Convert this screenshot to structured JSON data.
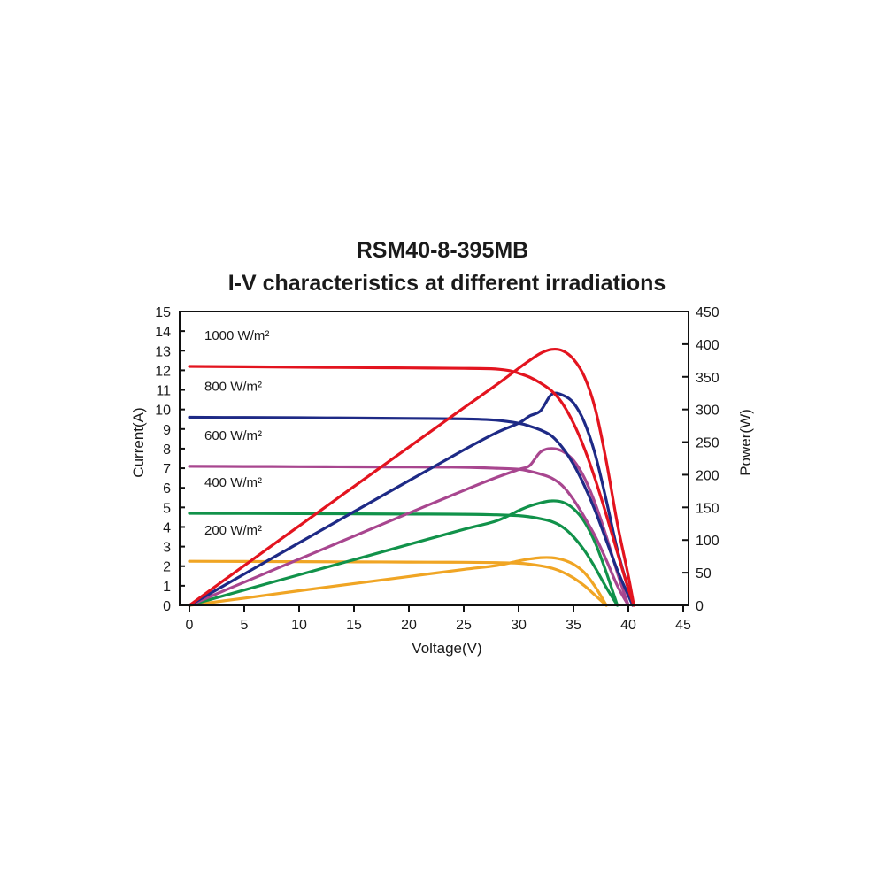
{
  "chart_data": {
    "type": "line",
    "title": "RSM40-8-395MB",
    "subtitle": "I-V characteristics at different irradiations",
    "xlabel": "Voltage(V)",
    "ylabel": "Current(A)",
    "y2label": "Power(W)",
    "xlim": [
      0,
      45
    ],
    "ylim": [
      0,
      15
    ],
    "y2lim": [
      0,
      450
    ],
    "xticks": [
      "0",
      "5",
      "10",
      "15",
      "20",
      "25",
      "30",
      "35",
      "40",
      "45"
    ],
    "yticks": [
      "0",
      "1",
      "2",
      "3",
      "4",
      "5",
      "6",
      "7",
      "8",
      "9",
      "10",
      "11",
      "12",
      "13",
      "14",
      "15"
    ],
    "y2ticks": [
      "0",
      "50",
      "100",
      "150",
      "200",
      "250",
      "300",
      "350",
      "400",
      "450"
    ],
    "grid": false,
    "series": [
      {
        "name": "1000 W/m²",
        "color": "#e3141f",
        "iv": [
          [
            0,
            12.2
          ],
          [
            5,
            12.18
          ],
          [
            10,
            12.16
          ],
          [
            15,
            12.14
          ],
          [
            20,
            12.12
          ],
          [
            25,
            12.1
          ],
          [
            27.5,
            12.08
          ],
          [
            29,
            12.0
          ],
          [
            30,
            11.85
          ],
          [
            31,
            11.65
          ],
          [
            32,
            11.35
          ],
          [
            33,
            10.95
          ],
          [
            34,
            10.3
          ],
          [
            35,
            9.3
          ],
          [
            36,
            8.0
          ],
          [
            37,
            6.4
          ],
          [
            38,
            4.6
          ],
          [
            39,
            2.7
          ],
          [
            39.8,
            1.2
          ],
          [
            40.5,
            0
          ]
        ],
        "pv": [
          [
            0,
            0
          ],
          [
            5,
            60.9
          ],
          [
            10,
            121.6
          ],
          [
            15,
            182.1
          ],
          [
            20,
            242.4
          ],
          [
            25,
            302.5
          ],
          [
            28,
            338
          ],
          [
            30,
            363
          ],
          [
            31,
            375
          ],
          [
            32,
            386
          ],
          [
            33,
            392
          ],
          [
            34,
            390
          ],
          [
            35,
            377
          ],
          [
            36,
            350
          ],
          [
            37,
            300
          ],
          [
            38,
            220
          ],
          [
            39,
            125
          ],
          [
            40,
            45
          ],
          [
            40.5,
            0
          ]
        ]
      },
      {
        "name": "800 W/m²",
        "color": "#1e2a86",
        "iv": [
          [
            0,
            9.6
          ],
          [
            5,
            9.59
          ],
          [
            10,
            9.58
          ],
          [
            15,
            9.56
          ],
          [
            20,
            9.54
          ],
          [
            25,
            9.52
          ],
          [
            28,
            9.45
          ],
          [
            30,
            9.3
          ],
          [
            31,
            9.15
          ],
          [
            32,
            8.95
          ],
          [
            33,
            8.65
          ],
          [
            34,
            8.05
          ],
          [
            35,
            7.2
          ],
          [
            36,
            6.1
          ],
          [
            37,
            4.8
          ],
          [
            38,
            3.3
          ],
          [
            39,
            1.8
          ],
          [
            40,
            0.5
          ],
          [
            40.4,
            0
          ]
        ],
        "pv": [
          [
            0,
            0
          ],
          [
            5,
            48
          ],
          [
            10,
            95.8
          ],
          [
            15,
            143.4
          ],
          [
            20,
            190.8
          ],
          [
            25,
            238
          ],
          [
            28,
            264.6
          ],
          [
            30,
            279
          ],
          [
            31,
            290
          ],
          [
            32,
            298
          ],
          [
            33,
            323
          ],
          [
            34,
            322
          ],
          [
            35,
            310
          ],
          [
            36,
            280
          ],
          [
            37,
            230
          ],
          [
            38,
            160
          ],
          [
            39,
            85
          ],
          [
            40,
            25
          ],
          [
            40.4,
            0
          ]
        ]
      },
      {
        "name": "600 W/m²",
        "color": "#a8468f",
        "iv": [
          [
            0,
            7.1
          ],
          [
            5,
            7.09
          ],
          [
            10,
            7.08
          ],
          [
            15,
            7.07
          ],
          [
            20,
            7.06
          ],
          [
            25,
            7.05
          ],
          [
            28,
            7.0
          ],
          [
            30,
            6.95
          ],
          [
            31,
            6.85
          ],
          [
            32,
            6.7
          ],
          [
            33,
            6.5
          ],
          [
            34,
            6.1
          ],
          [
            35,
            5.4
          ],
          [
            36,
            4.5
          ],
          [
            37,
            3.5
          ],
          [
            38,
            2.3
          ],
          [
            39,
            1.0
          ],
          [
            40,
            0
          ]
        ],
        "pv": [
          [
            0,
            0
          ],
          [
            5,
            35.5
          ],
          [
            10,
            70.8
          ],
          [
            15,
            106
          ],
          [
            20,
            141.2
          ],
          [
            25,
            176
          ],
          [
            28,
            196
          ],
          [
            30,
            208
          ],
          [
            31,
            214
          ],
          [
            32,
            235
          ],
          [
            33,
            240
          ],
          [
            34,
            236
          ],
          [
            35,
            222
          ],
          [
            36,
            195
          ],
          [
            37,
            155
          ],
          [
            38,
            105
          ],
          [
            39,
            50
          ],
          [
            40,
            0
          ]
        ]
      },
      {
        "name": "400 W/m²",
        "color": "#11924a",
        "iv": [
          [
            0,
            4.7
          ],
          [
            5,
            4.69
          ],
          [
            10,
            4.68
          ],
          [
            15,
            4.67
          ],
          [
            20,
            4.66
          ],
          [
            25,
            4.65
          ],
          [
            28,
            4.62
          ],
          [
            30,
            4.58
          ],
          [
            31,
            4.52
          ],
          [
            32,
            4.42
          ],
          [
            33,
            4.28
          ],
          [
            34,
            4.0
          ],
          [
            35,
            3.5
          ],
          [
            36,
            2.8
          ],
          [
            37,
            1.9
          ],
          [
            38,
            0.9
          ],
          [
            39,
            0
          ]
        ],
        "pv": [
          [
            0,
            0
          ],
          [
            5,
            23.5
          ],
          [
            10,
            46.8
          ],
          [
            15,
            70
          ],
          [
            20,
            93.2
          ],
          [
            25,
            116.3
          ],
          [
            28,
            129.4
          ],
          [
            30,
            145
          ],
          [
            31,
            152
          ],
          [
            32,
            157
          ],
          [
            33,
            160
          ],
          [
            34,
            158
          ],
          [
            35,
            148
          ],
          [
            36,
            128
          ],
          [
            37,
            95
          ],
          [
            38,
            50
          ],
          [
            39,
            0
          ]
        ]
      },
      {
        "name": "200 W/m²",
        "color": "#f0a524",
        "iv": [
          [
            0,
            2.25
          ],
          [
            5,
            2.24
          ],
          [
            10,
            2.23
          ],
          [
            15,
            2.22
          ],
          [
            20,
            2.21
          ],
          [
            25,
            2.2
          ],
          [
            28,
            2.18
          ],
          [
            30,
            2.15
          ],
          [
            31,
            2.1
          ],
          [
            32,
            2.02
          ],
          [
            33,
            1.9
          ],
          [
            34,
            1.7
          ],
          [
            35,
            1.4
          ],
          [
            36,
            1.0
          ],
          [
            37,
            0.5
          ],
          [
            38,
            0
          ]
        ],
        "pv": [
          [
            0,
            0
          ],
          [
            5,
            11
          ],
          [
            10,
            22.3
          ],
          [
            15,
            33.3
          ],
          [
            20,
            44.2
          ],
          [
            25,
            55
          ],
          [
            28,
            61
          ],
          [
            30,
            68
          ],
          [
            31,
            71
          ],
          [
            32,
            73
          ],
          [
            33,
            73
          ],
          [
            34,
            70
          ],
          [
            35,
            63
          ],
          [
            36,
            50
          ],
          [
            37,
            28
          ],
          [
            38,
            0
          ]
        ]
      }
    ]
  }
}
